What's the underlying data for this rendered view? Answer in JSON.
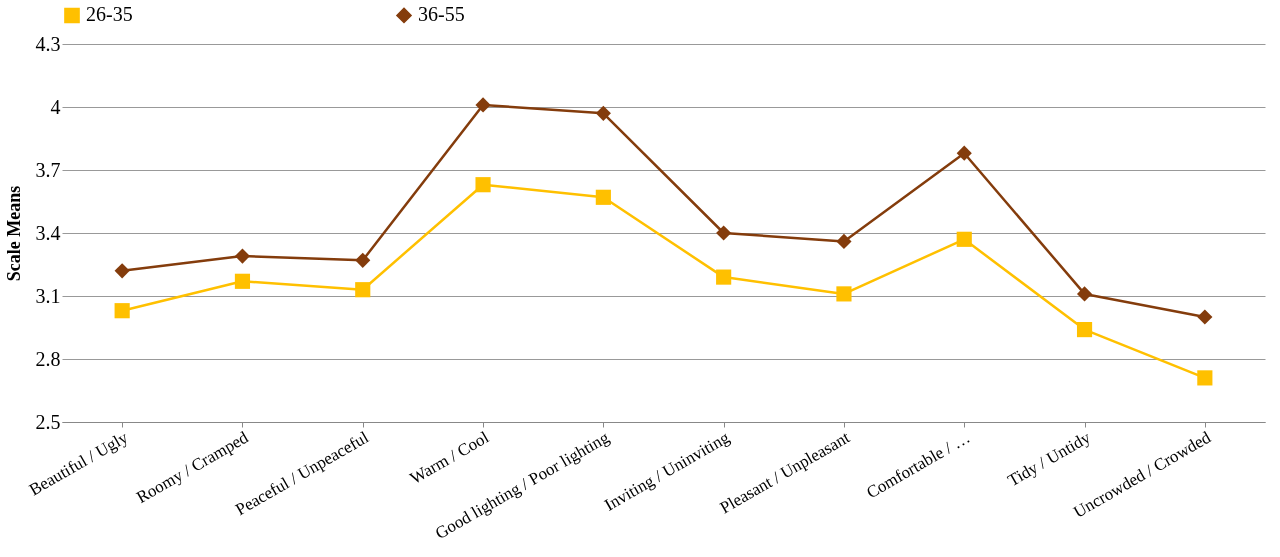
{
  "chart_data": {
    "type": "line",
    "ylabel": "Scale Means",
    "categories": [
      "Beautiful / Ugly",
      "Roomy / Cramped",
      "Peaceful / Unpeaceful",
      "Warm / Cool",
      "Good lighting / Poor lighting",
      "Inviting / Uninviting",
      "Pleasant / Unpleasant",
      "Comfortable / …",
      "Tidy / Untidy",
      "Uncrowded / Crowded"
    ],
    "series": [
      {
        "name": "26-35",
        "color": "#ffc000",
        "marker": "square",
        "values": [
          3.03,
          3.17,
          3.13,
          3.63,
          3.57,
          3.19,
          3.11,
          3.37,
          2.94,
          2.71
        ]
      },
      {
        "name": "36-55",
        "color": "#843c0c",
        "marker": "diamond",
        "values": [
          3.22,
          3.29,
          3.27,
          4.01,
          3.97,
          3.4,
          3.36,
          3.78,
          3.11,
          3.0
        ]
      }
    ],
    "ylim": [
      2.5,
      4.3
    ],
    "yticks": [
      2.5,
      2.8,
      3.1,
      3.4,
      3.7,
      4,
      4.3
    ],
    "grid": "y",
    "legend": "top",
    "line_style": "solid"
  }
}
